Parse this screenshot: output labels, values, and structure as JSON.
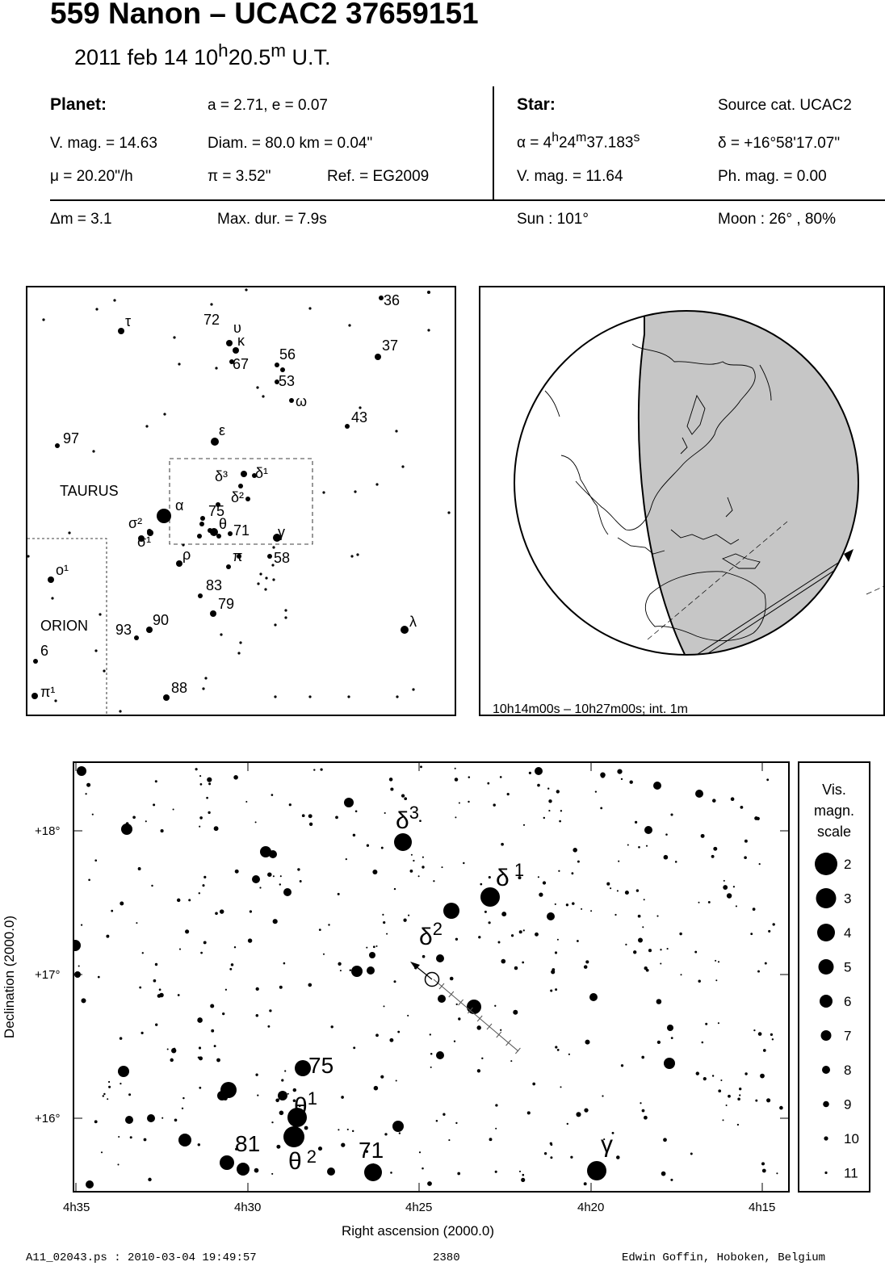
{
  "header": {
    "title": "559 Nanon  –  UCAC2 37659151",
    "date_prefix": "2011 feb 14  10",
    "date_h": "h",
    "date_mid": "20.5",
    "date_m": "m",
    "date_suffix": " U.T."
  },
  "planet": {
    "heading": "Planet:",
    "orbit": "a = 2.71, e = 0.07",
    "vmag": "V. mag. = 14.63",
    "diam": "Diam. = 80.0 km = 0.04\"",
    "mu": "μ =  20.20\"/h",
    "pi": "π =  3.52\"",
    "ref": "Ref. = EG2009",
    "dm": "Δm = 3.1",
    "maxdur": "Max. dur. = 7.9s"
  },
  "star": {
    "heading": "Star:",
    "source": "Source cat.  UCAC2",
    "alpha_prefix": "α =  4",
    "alpha_h": "h",
    "alpha_min": "24",
    "alpha_m": "m",
    "alpha_sec": "37.183",
    "alpha_s": "s",
    "delta": "δ = +16°58'17.07\"",
    "vmag": "V. mag. = 11.64",
    "phmag": "Ph. mag. =  0.00",
    "sun": "Sun : 101°",
    "moon": "Moon :  26° , 80%"
  },
  "finder": {
    "constellations": [
      "TAURUS",
      "ORION"
    ],
    "labels": [
      {
        "t": "τ"
      },
      {
        "t": "72"
      },
      {
        "t": "υ"
      },
      {
        "t": "κ"
      },
      {
        "t": "67"
      },
      {
        "t": "56"
      },
      {
        "t": "53"
      },
      {
        "t": "ω"
      },
      {
        "t": "36"
      },
      {
        "t": "37"
      },
      {
        "t": "43"
      },
      {
        "t": "97"
      },
      {
        "t": "ε"
      },
      {
        "t": "δ³"
      },
      {
        "t": "δ¹"
      },
      {
        "t": "δ²"
      },
      {
        "t": "α"
      },
      {
        "t": "75"
      },
      {
        "t": "σ²"
      },
      {
        "t": "σ¹"
      },
      {
        "t": "θ"
      },
      {
        "t": "71"
      },
      {
        "t": "γ"
      },
      {
        "t": "ρ"
      },
      {
        "t": "π"
      },
      {
        "t": "58"
      },
      {
        "t": "o¹"
      },
      {
        "t": "83"
      },
      {
        "t": "79"
      },
      {
        "t": "90"
      },
      {
        "t": "93"
      },
      {
        "t": "λ"
      },
      {
        "t": "6"
      },
      {
        "t": "88"
      },
      {
        "t": "π¹"
      }
    ]
  },
  "globe": {
    "caption": "10h14m00s – 10h27m00s; int.  1m"
  },
  "detail": {
    "ylabel": "Declination (2000.0)",
    "xlabel": "Right ascension (2000.0)",
    "yticks": [
      "+18°",
      "+17°",
      "+16°"
    ],
    "xticks": [
      "4h35",
      "4h30",
      "4h25",
      "4h20",
      "4h15"
    ],
    "star_labels": [
      "δ³",
      "δ¹",
      "δ²",
      "75",
      "θ¹",
      "81",
      "θ²",
      "71",
      "γ"
    ]
  },
  "scale": {
    "title_lines": [
      "Vis.",
      "magn.",
      "scale"
    ],
    "mags": [
      "2",
      "3",
      "4",
      "5",
      "6",
      "7",
      "8",
      "9",
      "10",
      "11"
    ]
  },
  "footer": {
    "left": "A11_02043.ps : 2010-03-04 19:49:57",
    "center": "2380",
    "right": "Edwin Goffin, Hoboken, Belgium"
  }
}
